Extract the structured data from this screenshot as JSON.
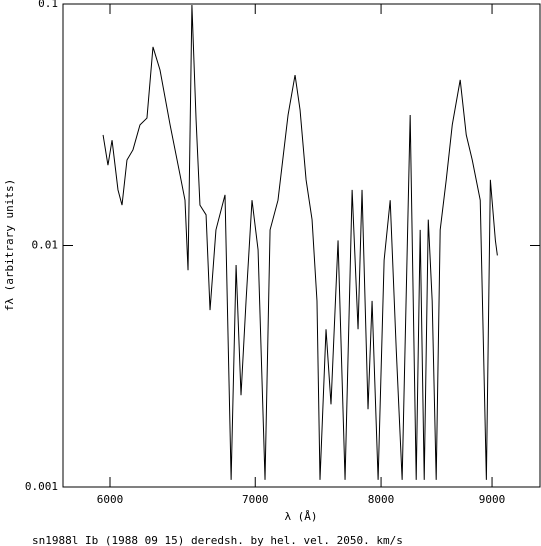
{
  "chart_data": {
    "type": "line",
    "x_label": "λ (Å)",
    "y_label": "fλ (arbitrary units)",
    "caption": "sn1988l Ib (1988 09 15) deredsh. by hel. vel.  2050. km/s",
    "x_log": true,
    "y_log": true,
    "xlim": [
      5708,
      9470
    ],
    "ylim": [
      0.001,
      0.1
    ],
    "xticks": [
      6000,
      7000,
      8000,
      9000
    ],
    "yticks": [
      0.001,
      0.01,
      0.1
    ],
    "color": "#000000",
    "x": [
      5956,
      5987,
      6013,
      6051,
      6077,
      6109,
      6148,
      6194,
      6240,
      6280,
      6327,
      6395,
      6463,
      6497,
      6518,
      6545,
      6574,
      6601,
      6644,
      6672,
      6714,
      6779,
      6823,
      6859,
      6895,
      6932,
      6976,
      7021,
      7073,
      7111,
      7171,
      7248,
      7302,
      7341,
      7388,
      7435,
      7474,
      7498,
      7546,
      7586,
      7643,
      7700,
      7758,
      7807,
      7840,
      7890,
      7924,
      7975,
      8026,
      8078,
      8130,
      8181,
      8251,
      8304,
      8339,
      8375,
      8411,
      8446,
      8482,
      8518,
      8573,
      8628,
      8701,
      8757,
      8813,
      8888,
      8946,
      8984,
      9032,
      9051
    ],
    "values": [
      0.0287,
      0.0215,
      0.0273,
      0.017,
      0.0147,
      0.0226,
      0.0249,
      0.0316,
      0.0337,
      0.0664,
      0.0533,
      0.0316,
      0.0196,
      0.0154,
      0.0079,
      0.099,
      0.0331,
      0.0147,
      0.0134,
      0.0054,
      0.0116,
      0.0162,
      0.00107,
      0.0083,
      0.0024,
      0.0059,
      0.0154,
      0.0096,
      0.00107,
      0.0116,
      0.0154,
      0.0347,
      0.0508,
      0.0364,
      0.0187,
      0.0128,
      0.0059,
      0.00107,
      0.0045,
      0.0022,
      0.0105,
      0.00107,
      0.017,
      0.0045,
      0.017,
      0.0021,
      0.0059,
      0.00107,
      0.0087,
      0.0154,
      0.0037,
      0.00107,
      0.0347,
      0.00107,
      0.0116,
      0.00107,
      0.0128,
      0.0059,
      0.00107,
      0.0116,
      0.0187,
      0.0316,
      0.0485,
      0.0287,
      0.0226,
      0.0154,
      0.00107,
      0.0187,
      0.0105,
      0.0091
    ]
  }
}
